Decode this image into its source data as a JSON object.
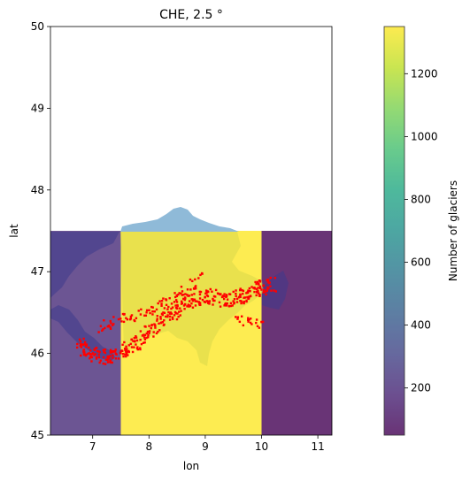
{
  "chart_data": {
    "type": "heatmap",
    "title": "CHE, 2.5 °",
    "xlabel": "lon",
    "ylabel": "lat",
    "xlim": [
      6.25,
      11.25
    ],
    "ylim": [
      45,
      50
    ],
    "xticks": [
      7,
      8,
      9,
      10,
      11
    ],
    "yticks": [
      45,
      46,
      47,
      48,
      49,
      50
    ],
    "grid": false,
    "colorbar": {
      "label": "Number of glaciers",
      "colormap": "viridis",
      "range": [
        50,
        1350
      ],
      "ticks": [
        200,
        400,
        600,
        800,
        1000,
        1200
      ]
    },
    "cells": [
      {
        "lon": [
          6.25,
          7.5
        ],
        "lat": [
          45,
          47.5
        ],
        "value": 205
      },
      {
        "lon": [
          7.5,
          10.0
        ],
        "lat": [
          45,
          47.5
        ],
        "value": 1350
      },
      {
        "lon": [
          10.0,
          11.25
        ],
        "lat": [
          45,
          47.5
        ],
        "value": 50
      }
    ],
    "overlays": {
      "country_outline_color": "#2a3f8f",
      "lake_color": "#8fbad8",
      "glacier_point_color": "#ff0000"
    }
  }
}
